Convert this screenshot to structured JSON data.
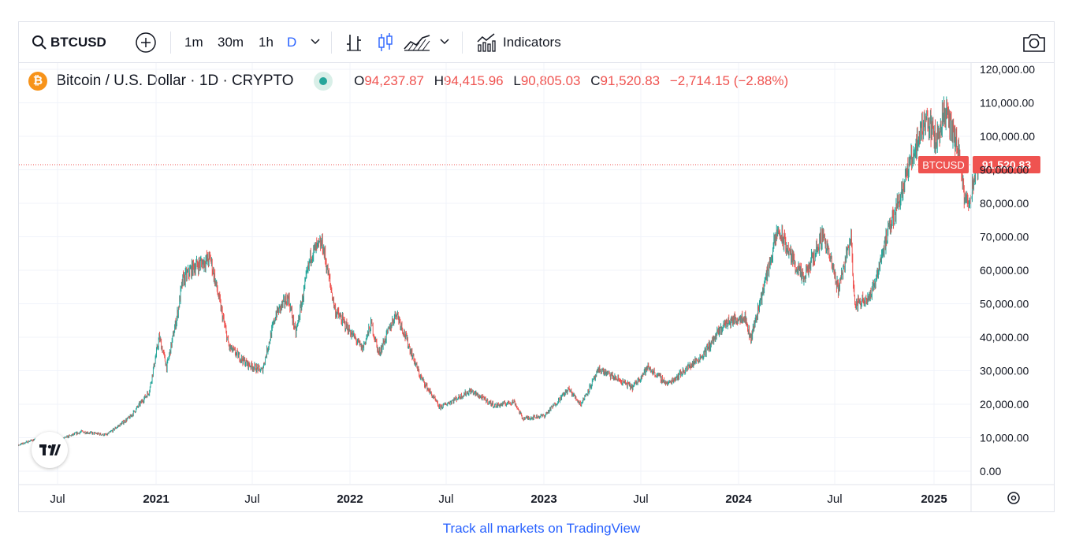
{
  "toolbar": {
    "symbol": "BTCUSD",
    "intervals": [
      "1m",
      "30m",
      "1h",
      "D"
    ],
    "active_interval": "D",
    "indicators_label": "Indicators"
  },
  "legend": {
    "title": "Bitcoin / U.S. Dollar · 1D · CRYPTO",
    "ohlc": {
      "open_key": "O",
      "open": "94,237.87",
      "high_key": "H",
      "high": "94,415.96",
      "low_key": "L",
      "low": "90,805.03",
      "close_key": "C",
      "close": "91,520.83",
      "change": "−2,714.15 (−2.88%)"
    }
  },
  "price_tag": {
    "symbol": "BTCUSD",
    "price": "91,520.83"
  },
  "footer": {
    "link_text": "Track all markets on TradingView"
  },
  "colors": {
    "up": "#26a69a",
    "down": "#ef5350",
    "accent": "#2962ff",
    "btc": "#f7931a"
  },
  "chart_data": {
    "type": "line",
    "title": "Bitcoin / U.S. Dollar · 1D · CRYPTO",
    "xlabel": "",
    "ylabel": "",
    "ylim": [
      0,
      120000
    ],
    "y_ticks": [
      "120,000.00",
      "110,000.00",
      "100,000.00",
      "90,000.00",
      "80,000.00",
      "70,000.00",
      "60,000.00",
      "50,000.00",
      "40,000.00",
      "30,000.00",
      "20,000.00",
      "10,000.00",
      "0.00"
    ],
    "x_ticks": [
      "Jul",
      "2021",
      "Jul",
      "2022",
      "Jul",
      "2023",
      "Jul",
      "2024",
      "Jul",
      "2025"
    ],
    "series": [
      {
        "x": [
          "2020-04-01",
          "2020-05-15",
          "2020-07-01",
          "2020-08-15",
          "2020-10-01",
          "2020-11-15",
          "2020-12-20",
          "2021-01-08",
          "2021-01-22",
          "2021-02-10",
          "2021-02-21",
          "2021-03-13",
          "2021-04-14",
          "2021-05-19",
          "2021-06-22",
          "2021-07-20",
          "2021-08-15",
          "2021-09-07",
          "2021-09-21",
          "2021-10-20",
          "2021-11-10",
          "2021-12-04",
          "2022-01-24",
          "2022-02-10",
          "2022-02-24",
          "2022-03-29",
          "2022-05-12",
          "2022-06-18",
          "2022-08-15",
          "2022-09-30",
          "2022-11-05",
          "2022-11-21",
          "2023-01-01",
          "2023-02-15",
          "2023-03-10",
          "2023-04-14",
          "2023-06-15",
          "2023-07-14",
          "2023-08-20",
          "2023-10-24",
          "2023-12-05",
          "2024-01-11",
          "2024-01-23",
          "2024-03-14",
          "2024-05-01",
          "2024-06-07",
          "2024-07-05",
          "2024-07-29",
          "2024-08-05",
          "2024-09-06",
          "2024-09-27",
          "2024-11-13",
          "2024-12-17",
          "2025-01-05",
          "2025-01-21",
          "2025-02-15",
          "2025-02-28",
          "2025-03-10",
          "2025-03-25"
        ],
        "values": [
          6800,
          9300,
          9200,
          11800,
          10800,
          16300,
          23800,
          40000,
          31000,
          46000,
          57000,
          61000,
          63500,
          37000,
          32000,
          30000,
          47000,
          52000,
          41000,
          65000,
          68000,
          48000,
          36500,
          44000,
          35000,
          47500,
          28500,
          19000,
          24000,
          19500,
          20800,
          15700,
          16600,
          24500,
          20000,
          30400,
          25000,
          31000,
          26000,
          34500,
          44000,
          46500,
          39500,
          72000,
          57000,
          71000,
          54500,
          70000,
          49500,
          53000,
          66000,
          90000,
          106000,
          98500,
          108000,
          96000,
          80000,
          82000,
          91520.83
        ]
      }
    ],
    "last_price": 91520.83
  }
}
